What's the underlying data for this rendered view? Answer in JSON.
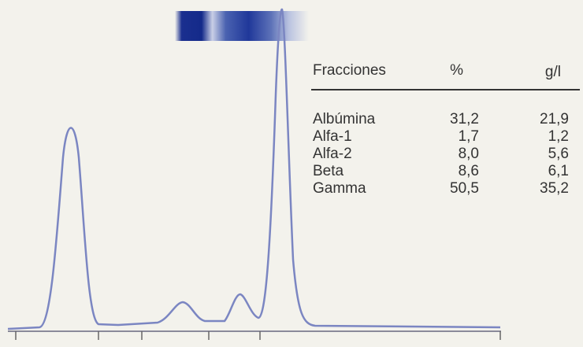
{
  "table": {
    "header": [
      "Fracciones",
      "%",
      "g/l"
    ],
    "rows": [
      [
        "Albúmina",
        "31,2",
        "21,9"
      ],
      [
        "Alfa-1",
        "1,7",
        "1,2"
      ],
      [
        "Alfa-2",
        "8,0",
        "5,6"
      ],
      [
        "Beta",
        "8,6",
        "6,1"
      ],
      [
        "Gamma",
        "50,5",
        "35,2"
      ]
    ]
  }
}
